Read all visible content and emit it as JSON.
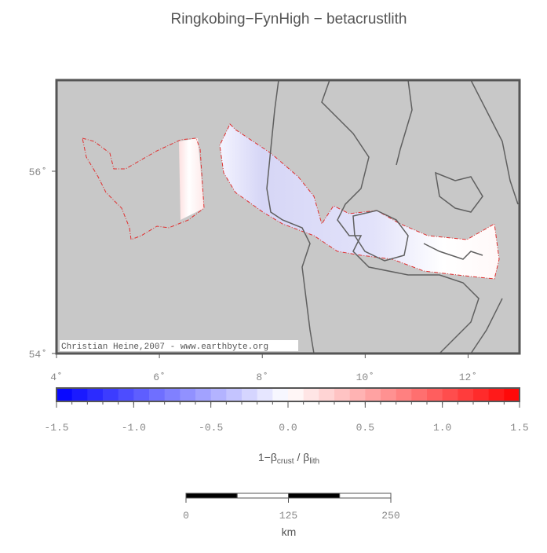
{
  "title": "Ringkobing−FynHigh − betacrustlith",
  "map": {
    "xlim": [
      4,
      13
    ],
    "ylim": [
      54,
      57
    ],
    "xticks": [
      {
        "value": 4,
        "label": "4˚"
      },
      {
        "value": 6,
        "label": "6˚"
      },
      {
        "value": 8,
        "label": "8˚"
      },
      {
        "value": 10,
        "label": "10˚"
      },
      {
        "value": 12,
        "label": "12˚"
      }
    ],
    "yticks": [
      {
        "value": 54,
        "label": "54˚"
      },
      {
        "value": 56,
        "label": "56˚"
      }
    ],
    "credit": "Christian Heine,2007 - www.earthbyte.org"
  },
  "colorbar": {
    "lim": [
      -1.5,
      1.5
    ],
    "ticks": [
      {
        "value": -1.5,
        "label": "-1.5"
      },
      {
        "value": -1,
        "label": "-1.0"
      },
      {
        "value": -0.5,
        "label": "-0.5"
      },
      {
        "value": 0,
        "label": "0.0"
      },
      {
        "value": 0.5,
        "label": "0.5"
      },
      {
        "value": 1,
        "label": "1.0"
      },
      {
        "value": 1.5,
        "label": "1.5"
      }
    ],
    "label": {
      "main": "1−β",
      "sub1": "crust",
      "mid": " / β",
      "sub2": "lith"
    }
  },
  "scalebar": {
    "ticks": [
      0,
      125,
      250
    ],
    "unit": "km"
  }
}
